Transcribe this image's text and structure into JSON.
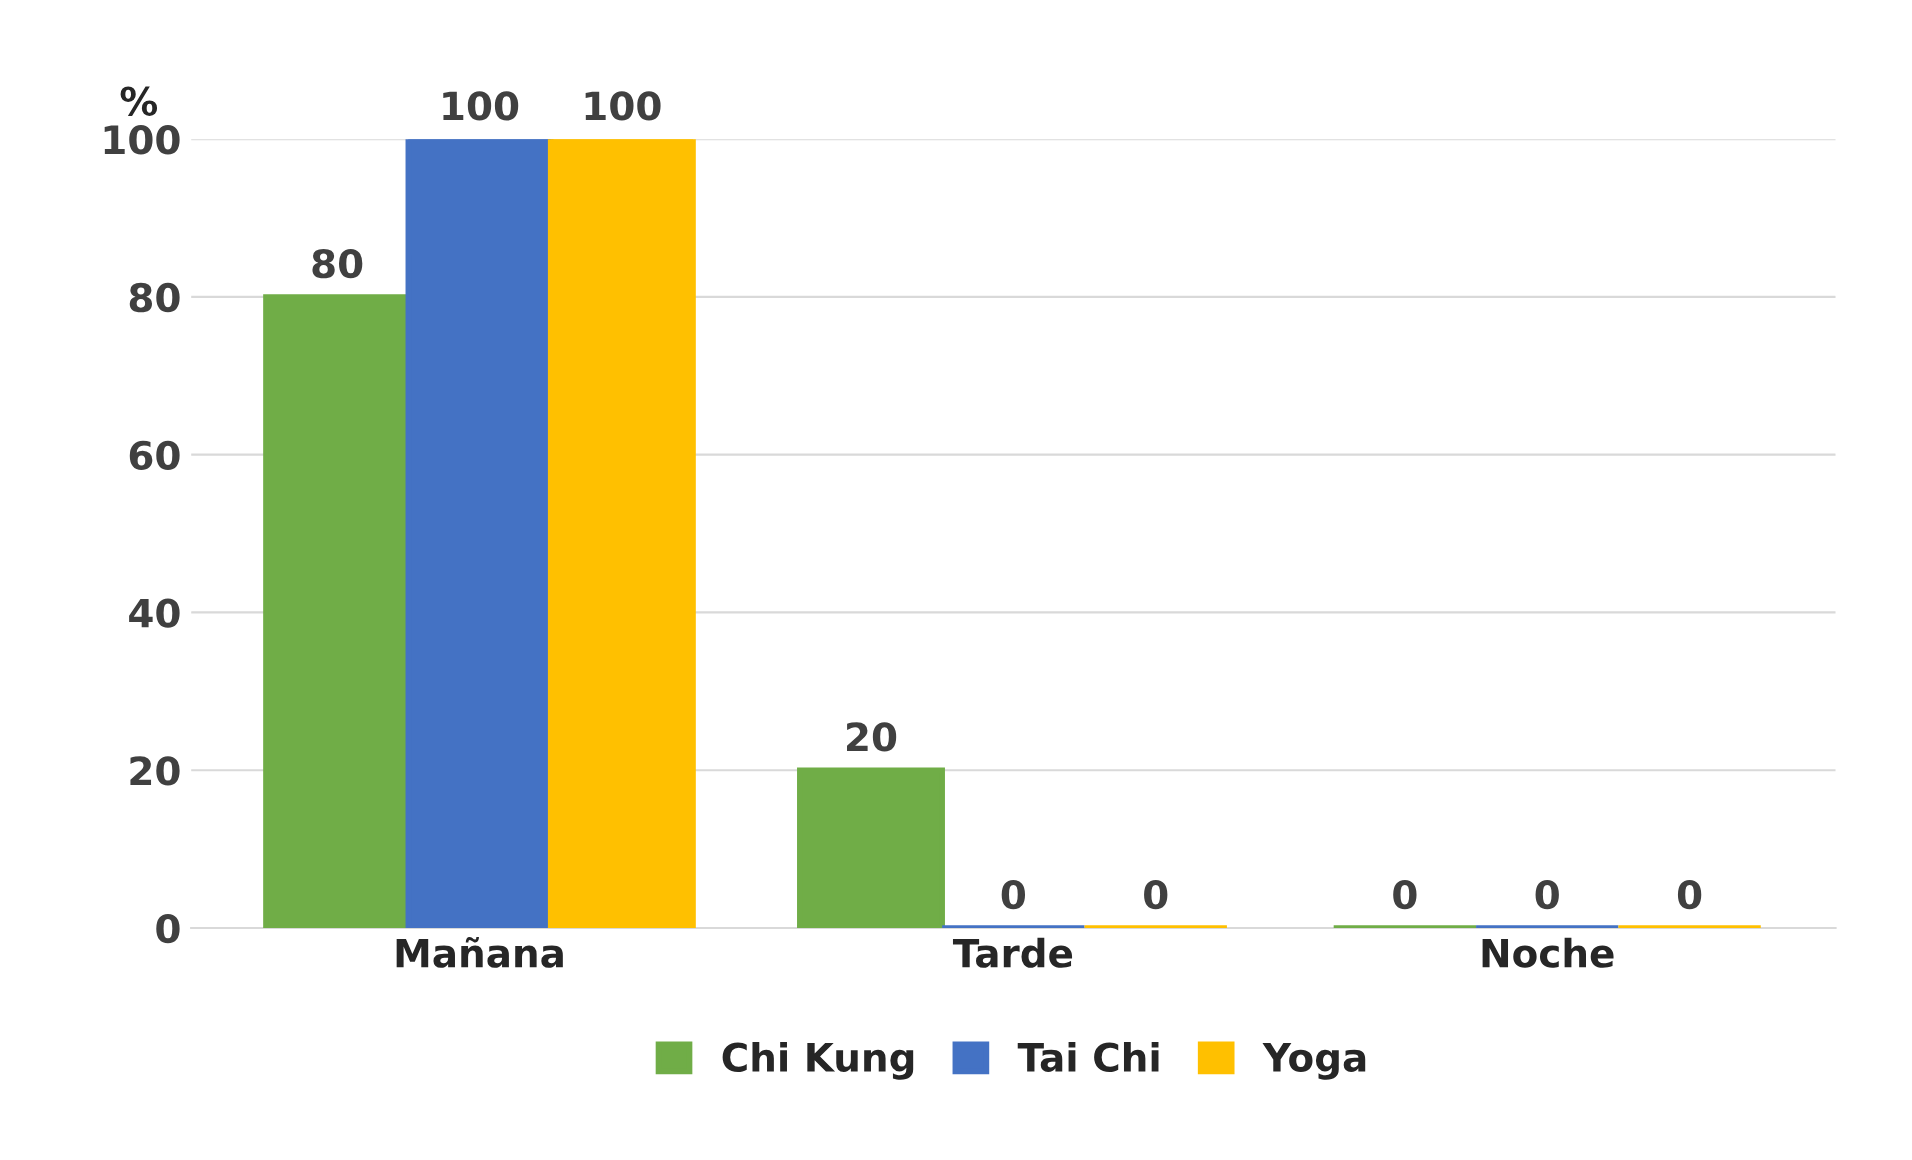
{
  "chart_data": {
    "type": "bar",
    "ylabel": "%",
    "categories": [
      "Mañana",
      "Tarde",
      "Noche"
    ],
    "series": [
      {
        "name": "Chi Kung",
        "color": "#70ad47",
        "values": [
          80,
          20,
          0
        ]
      },
      {
        "name": "Tai Chi",
        "color": "#4472c4",
        "values": [
          100,
          0,
          0
        ]
      },
      {
        "name": "Yoga",
        "color": "#ffc000",
        "values": [
          100,
          0,
          0
        ]
      }
    ],
    "ylim": [
      0,
      100
    ],
    "yticks": [
      0,
      20,
      40,
      60,
      80,
      100
    ],
    "grid": "y",
    "legend": "bottom",
    "data_labels": true
  }
}
